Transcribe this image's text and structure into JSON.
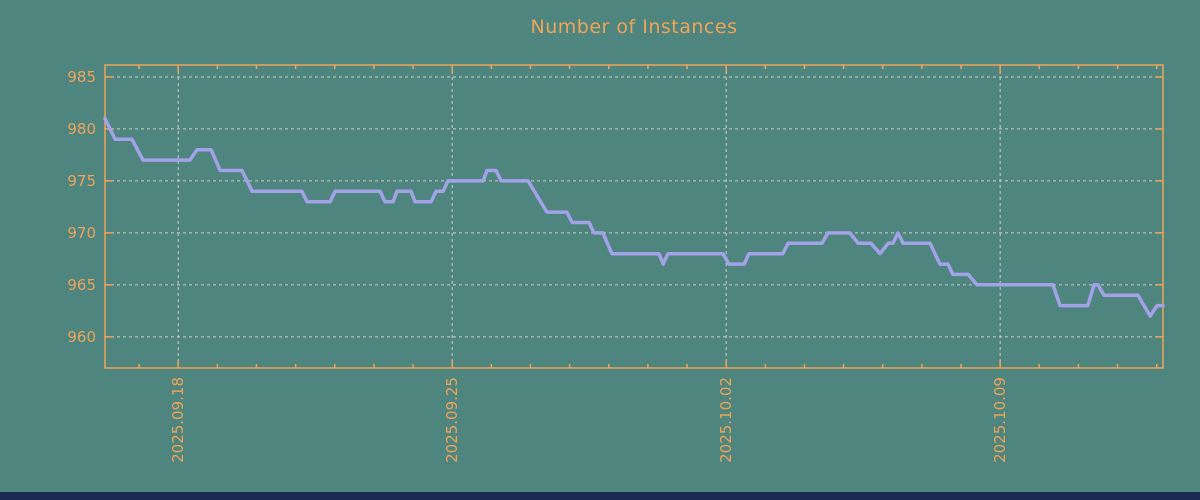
{
  "title": "Number of Instances",
  "colors": {
    "background": "#4e857e",
    "accent_orange": "#efa45a",
    "line": "#a3a2e8",
    "grid": "#ccd2cb",
    "footer_bar": "#1c2a52"
  },
  "chart_data": {
    "type": "line",
    "title": "Number of Instances",
    "xlabel": "",
    "ylabel": "",
    "legend": "none",
    "grid": true,
    "yticks": [
      985,
      980,
      975,
      970,
      965,
      960
    ],
    "ylim": [
      957.0,
      986.15
    ],
    "xlim_days": [
      0,
      27.03
    ],
    "xticks": [
      {
        "day": 1.87,
        "label": "2025.09.18"
      },
      {
        "day": 8.87,
        "label": "2025.09.25"
      },
      {
        "day": 15.87,
        "label": "2025.10.02"
      },
      {
        "day": 22.87,
        "label": "2025.10.09"
      }
    ],
    "minor_tick_phase": 0.87,
    "minor_tick_every_days": 1,
    "series": [
      {
        "name": "instances",
        "points": [
          [
            0,
            981
          ],
          [
            0.26,
            979
          ],
          [
            0.69,
            979
          ],
          [
            0.97,
            977
          ],
          [
            2.17,
            977
          ],
          [
            2.35,
            978
          ],
          [
            2.71,
            978
          ],
          [
            2.94,
            976
          ],
          [
            3.5,
            976
          ],
          [
            3.76,
            974
          ],
          [
            5.03,
            974
          ],
          [
            5.16,
            973
          ],
          [
            5.75,
            973
          ],
          [
            5.88,
            974
          ],
          [
            7.03,
            974
          ],
          [
            7.15,
            973
          ],
          [
            7.36,
            973
          ],
          [
            7.46,
            974
          ],
          [
            7.82,
            974
          ],
          [
            7.92,
            973
          ],
          [
            8.33,
            973
          ],
          [
            8.46,
            974
          ],
          [
            8.64,
            974
          ],
          [
            8.76,
            975
          ],
          [
            9.66,
            975
          ],
          [
            9.76,
            976
          ],
          [
            9.99,
            976
          ],
          [
            10.12,
            975
          ],
          [
            10.81,
            975
          ],
          [
            11.29,
            972
          ],
          [
            11.8,
            972
          ],
          [
            11.93,
            971
          ],
          [
            12.37,
            971
          ],
          [
            12.49,
            970
          ],
          [
            12.72,
            970
          ],
          [
            12.95,
            968
          ],
          [
            14.15,
            968
          ],
          [
            14.26,
            967
          ],
          [
            14.38,
            968
          ],
          [
            15.79,
            968
          ],
          [
            15.94,
            967
          ],
          [
            16.33,
            967
          ],
          [
            16.45,
            968
          ],
          [
            17.32,
            968
          ],
          [
            17.45,
            969
          ],
          [
            18.32,
            969
          ],
          [
            18.47,
            970
          ],
          [
            19.03,
            970
          ],
          [
            19.24,
            969
          ],
          [
            19.57,
            969
          ],
          [
            19.8,
            968
          ],
          [
            20.01,
            969
          ],
          [
            20.13,
            969
          ],
          [
            20.26,
            970
          ],
          [
            20.39,
            969
          ],
          [
            21.08,
            969
          ],
          [
            21.33,
            967
          ],
          [
            21.54,
            967
          ],
          [
            21.66,
            966
          ],
          [
            22.05,
            966
          ],
          [
            22.28,
            965
          ],
          [
            24.22,
            965
          ],
          [
            24.4,
            963
          ],
          [
            25.11,
            963
          ],
          [
            25.27,
            965
          ],
          [
            25.37,
            965
          ],
          [
            25.52,
            964
          ],
          [
            26.39,
            964
          ],
          [
            26.7,
            962
          ],
          [
            26.88,
            963
          ],
          [
            27.03,
            963
          ]
        ]
      }
    ]
  }
}
